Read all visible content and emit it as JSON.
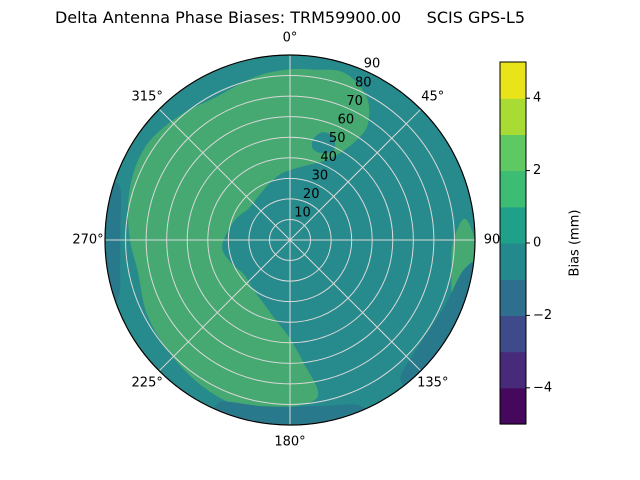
{
  "chart_data": {
    "type": "heatmap",
    "subtype": "polar_contour",
    "title": "Delta Antenna Phase Biases: TRM59900.00     SCIS GPS-L5",
    "angular_ticks": [
      {
        "angle_deg": 0,
        "label": "0°"
      },
      {
        "angle_deg": 45,
        "label": "45°"
      },
      {
        "angle_deg": 90,
        "label": "90"
      },
      {
        "angle_deg": 135,
        "label": "135°"
      },
      {
        "angle_deg": 180,
        "label": "180°"
      },
      {
        "angle_deg": 225,
        "label": "225°"
      },
      {
        "angle_deg": 270,
        "label": "270°"
      },
      {
        "angle_deg": 315,
        "label": "315°"
      }
    ],
    "radial_ticks": [
      {
        "value": 10,
        "label": "10"
      },
      {
        "value": 20,
        "label": "20"
      },
      {
        "value": 30,
        "label": "30"
      },
      {
        "value": 40,
        "label": "40"
      },
      {
        "value": 50,
        "label": "50"
      },
      {
        "value": 60,
        "label": "60"
      },
      {
        "value": 70,
        "label": "70"
      },
      {
        "value": 80,
        "label": "80"
      },
      {
        "value": 90,
        "label": "90"
      }
    ],
    "r_max": 90,
    "radial_label_angle_deg": 25,
    "grid_on": true,
    "grid_color": "#d9d9d9",
    "outline_color": "#000000",
    "base": {
      "color": "#278a8c",
      "bias_mm_range": "-1 to 0"
    },
    "regions": [
      {
        "name": "green-annulus",
        "bias_mm_range": "1 to 2",
        "color": "#45a971",
        "points": [
          [
            170,
            0.86
          ],
          [
            183,
            0.91
          ],
          [
            197,
            0.94
          ],
          [
            212,
            0.92
          ],
          [
            228,
            0.89
          ],
          [
            243,
            0.87
          ],
          [
            258,
            0.84
          ],
          [
            272,
            0.87
          ],
          [
            288,
            0.91
          ],
          [
            303,
            0.93
          ],
          [
            318,
            0.9
          ],
          [
            333,
            0.87
          ],
          [
            347,
            0.9
          ],
          [
            358,
            0.92
          ],
          [
            8,
            0.93
          ],
          [
            18,
            0.95
          ],
          [
            28,
            0.88
          ],
          [
            34,
            0.75
          ],
          [
            33,
            0.62
          ],
          [
            27,
            0.5
          ],
          [
            17,
            0.43
          ],
          [
            5,
            0.39
          ],
          [
            352,
            0.36
          ],
          [
            338,
            0.32
          ],
          [
            323,
            0.29
          ],
          [
            308,
            0.28
          ],
          [
            293,
            0.31
          ],
          [
            278,
            0.34
          ],
          [
            263,
            0.37
          ],
          [
            248,
            0.34
          ],
          [
            233,
            0.31
          ],
          [
            218,
            0.33
          ],
          [
            203,
            0.37
          ],
          [
            190,
            0.44
          ],
          [
            181,
            0.52
          ],
          [
            174,
            0.66
          ]
        ]
      },
      {
        "name": "green-east-rim",
        "bias_mm_range": "1 to 2",
        "color": "#45a971",
        "points": [
          [
            83,
            0.95
          ],
          [
            90,
            1.0
          ],
          [
            98,
            1.02
          ],
          [
            106,
            0.99
          ],
          [
            109,
            0.93
          ],
          [
            101,
            0.89
          ],
          [
            91,
            0.88
          ]
        ]
      },
      {
        "name": "dark-east-rim",
        "bias_mm_range": "-2 to -1",
        "color": "#28798c",
        "points": [
          [
            97,
            1.03
          ],
          [
            112,
            1.04
          ],
          [
            127,
            1.04
          ],
          [
            140,
            1.02
          ],
          [
            141,
            0.95
          ],
          [
            129,
            0.9
          ],
          [
            113,
            0.91
          ],
          [
            100,
            0.95
          ]
        ]
      },
      {
        "name": "dark-south-rim",
        "bias_mm_range": "-2 to -1",
        "color": "#28798c",
        "points": [
          [
            157,
            1.03
          ],
          [
            172,
            1.04
          ],
          [
            188,
            1.04
          ],
          [
            202,
            1.02
          ],
          [
            203,
            0.95
          ],
          [
            189,
            0.91
          ],
          [
            171,
            0.91
          ],
          [
            158,
            0.96
          ]
        ]
      },
      {
        "name": "dark-west-rim",
        "bias_mm_range": "-2 to -1",
        "color": "#28798c",
        "points": [
          [
            251,
            1.03
          ],
          [
            263,
            1.04
          ],
          [
            276,
            1.04
          ],
          [
            287,
            1.02
          ],
          [
            287,
            0.96
          ],
          [
            275,
            0.92
          ],
          [
            261,
            0.93
          ],
          [
            252,
            0.97
          ]
        ]
      },
      {
        "name": "teal-island",
        "bias_mm_range": "-1 to 0",
        "color": "#278a8c",
        "points": [
          [
            13,
            0.56
          ],
          [
            17,
            0.61
          ],
          [
            23,
            0.6
          ],
          [
            26,
            0.54
          ],
          [
            20,
            0.5
          ],
          [
            14,
            0.51
          ]
        ]
      }
    ],
    "colorbar": {
      "label": "Bias (mm)",
      "vmin": -5,
      "vmax": 5,
      "colormap": "viridis",
      "ticks": [
        {
          "value": -4,
          "label": "−4"
        },
        {
          "value": -2,
          "label": "−2"
        },
        {
          "value": 0,
          "label": "0"
        },
        {
          "value": 2,
          "label": "2"
        },
        {
          "value": 4,
          "label": "4"
        }
      ],
      "band_colors_bottom_to_top": [
        "#46085c",
        "#472a7a",
        "#3e4a89",
        "#2e6f8e",
        "#23898d",
        "#1fa088",
        "#3dbc74",
        "#5ec962",
        "#a8db34",
        "#e8e419"
      ]
    }
  }
}
